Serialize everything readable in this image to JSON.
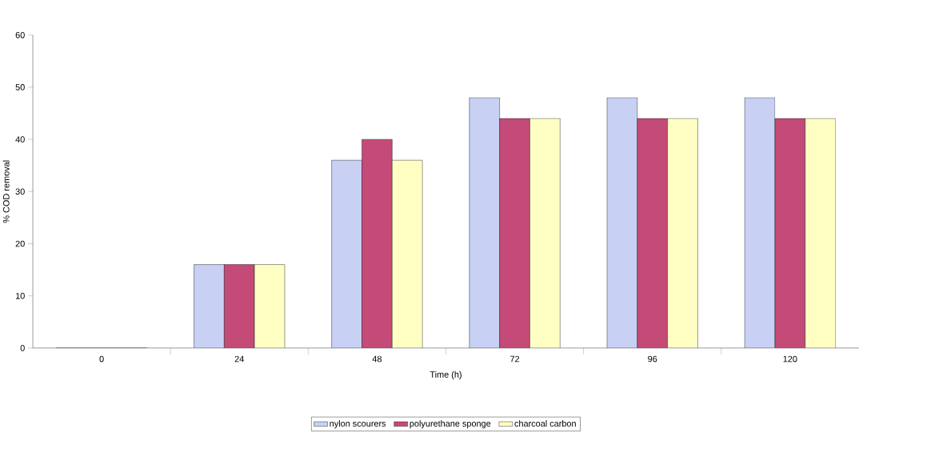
{
  "chart_data": {
    "type": "bar",
    "xlabel": "Time (h)",
    "ylabel": "% COD removal",
    "categories": [
      "0",
      "24",
      "48",
      "72",
      "96",
      "120"
    ],
    "series": [
      {
        "name": "nylon scourers",
        "color": "#c8d0f4",
        "values": [
          0,
          16,
          36,
          48,
          48,
          48
        ]
      },
      {
        "name": "polyurethane sponge",
        "color": "#c44a78",
        "values": [
          0,
          16,
          40,
          44,
          44,
          44
        ]
      },
      {
        "name": "charcoal carbon",
        "color": "#ffffc4",
        "values": [
          0,
          16,
          36,
          44,
          44,
          44
        ]
      }
    ],
    "ylim": [
      0,
      60
    ],
    "yticks": [
      0,
      10,
      20,
      30,
      40,
      50,
      60
    ],
    "grid": false,
    "legend": "bottom"
  }
}
